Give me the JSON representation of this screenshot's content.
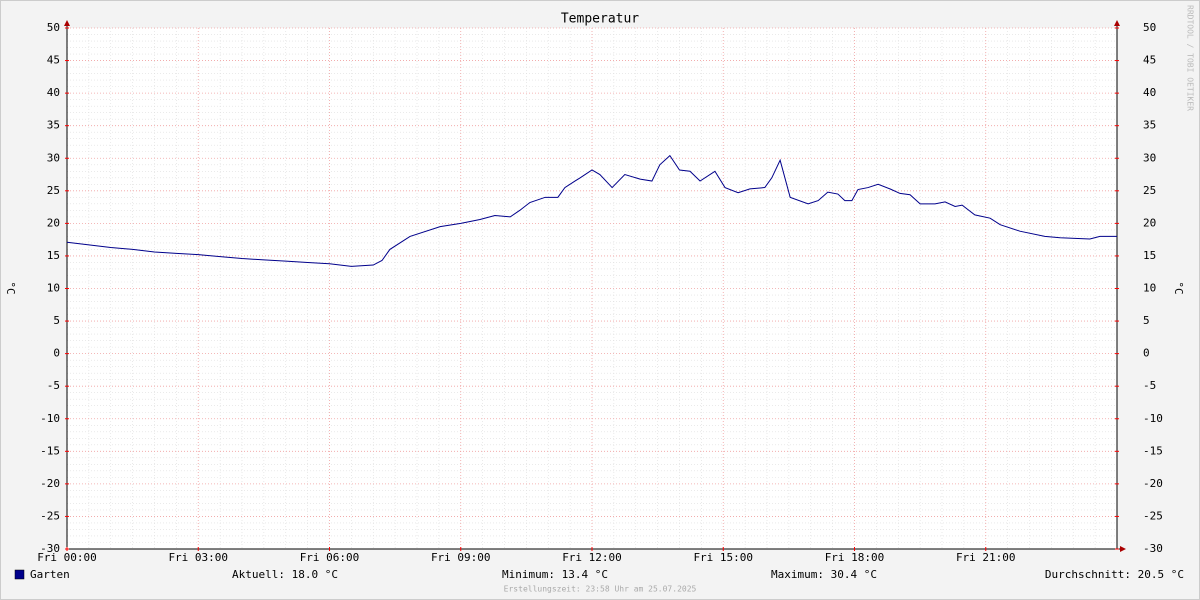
{
  "chart_data": {
    "type": "line",
    "title": "Temperatur",
    "ylabel": "°C",
    "watermark": "RRDTOOL / TOBI OETIKER",
    "x": [
      0,
      0.5,
      1,
      1.5,
      2,
      2.5,
      3,
      3.5,
      4,
      4.5,
      5,
      5.5,
      6,
      6.5,
      7,
      7.2,
      7.38,
      7.84,
      8.53,
      9.0,
      9.44,
      9.78,
      10.13,
      10.35,
      10.58,
      10.93,
      11.22,
      11.38,
      11.61,
      11.73,
      12.0,
      12.18,
      12.46,
      12.75,
      13.1,
      13.37,
      13.55,
      13.78,
      14.0,
      14.24,
      14.47,
      14.81,
      15.04,
      15.34,
      15.61,
      15.95,
      16.11,
      16.3,
      16.53,
      16.94,
      17.17,
      17.39,
      17.62,
      17.78,
      17.94,
      18.08,
      18.31,
      18.54,
      18.81,
      19.04,
      19.27,
      19.5,
      19.84,
      20.07,
      20.3,
      20.46,
      20.75,
      21.1,
      21.33,
      21.78,
      22.35,
      22.7,
      23.38,
      23.61,
      24
    ],
    "series": [
      {
        "name": "Garten",
        "color": "#00008b",
        "values": [
          17.1,
          16.7,
          16.3,
          16.0,
          15.6,
          15.4,
          15.2,
          14.9,
          14.6,
          14.4,
          14.2,
          14.0,
          13.8,
          13.4,
          13.6,
          14.3,
          16.0,
          18.0,
          19.5,
          20.0,
          20.6,
          21.2,
          21.0,
          22.0,
          23.2,
          24.0,
          24.0,
          25.5,
          26.5,
          27.0,
          28.2,
          27.5,
          25.5,
          27.5,
          26.8,
          26.5,
          29.0,
          30.4,
          28.2,
          28.0,
          26.5,
          28.0,
          25.5,
          24.7,
          25.3,
          25.5,
          27.0,
          29.7,
          24.0,
          23.0,
          23.5,
          24.8,
          24.5,
          23.5,
          23.5,
          25.2,
          25.5,
          26.0,
          25.3,
          24.6,
          24.4,
          23.0,
          23.0,
          23.3,
          22.6,
          22.8,
          21.3,
          20.8,
          19.8,
          18.8,
          18.0,
          17.8,
          17.6,
          18.0,
          18.0
        ]
      }
    ],
    "xlim": [
      0,
      24
    ],
    "xticks": [
      {
        "value": 0,
        "label": "Fri 00:00"
      },
      {
        "value": 3,
        "label": "Fri 03:00"
      },
      {
        "value": 6,
        "label": "Fri 06:00"
      },
      {
        "value": 9,
        "label": "Fri 09:00"
      },
      {
        "value": 12,
        "label": "Fri 12:00"
      },
      {
        "value": 15,
        "label": "Fri 15:00"
      },
      {
        "value": 18,
        "label": "Fri 18:00"
      },
      {
        "value": 21,
        "label": "Fri 21:00"
      }
    ],
    "ylim": [
      -30,
      50
    ],
    "yticks": [
      50,
      45,
      40,
      35,
      30,
      25,
      20,
      15,
      10,
      5,
      0,
      -5,
      -10,
      -15,
      -20,
      -25,
      -30
    ],
    "grid": true,
    "stats": [
      "Aktuell: 18.0 °C",
      "Minimum: 13.4 °C",
      "Maximum: 30.4 °C",
      "Durchschnitt: 20.5 °C"
    ],
    "footer": "Erstellungszeit: 23:58 Uhr am 25.07.2025"
  }
}
